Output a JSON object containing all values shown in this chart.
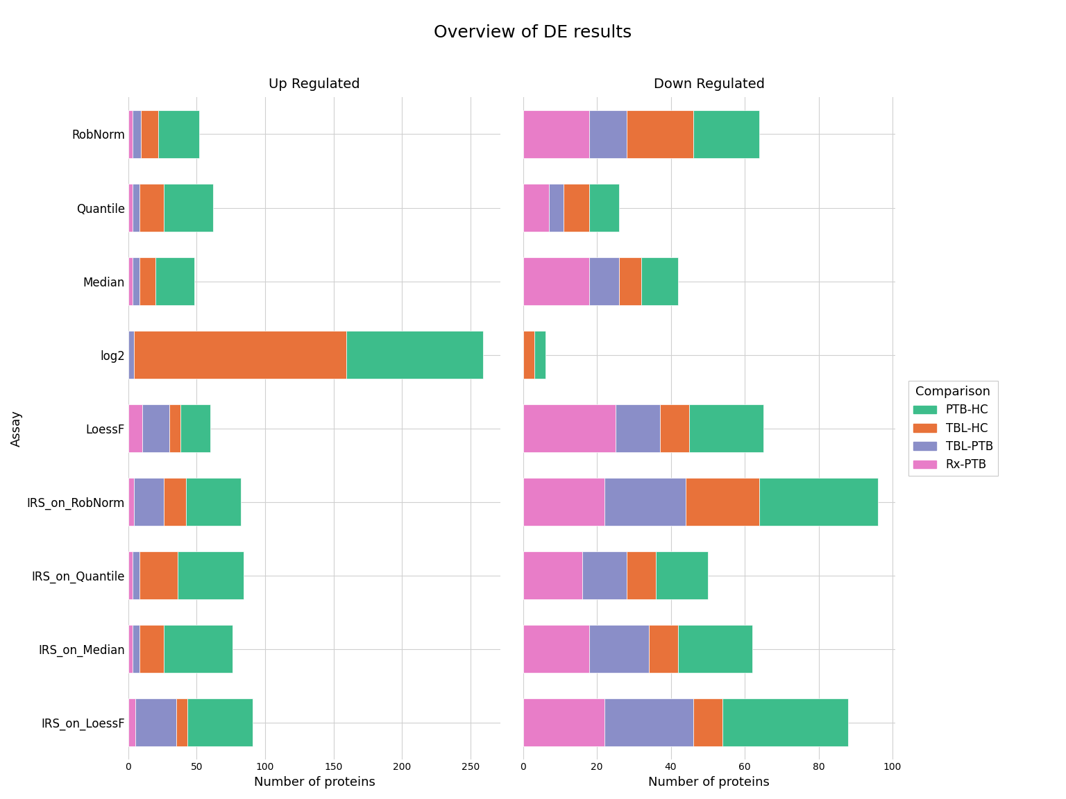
{
  "title": "Overview of DE results",
  "facets": [
    "Up Regulated",
    "Down Regulated"
  ],
  "assays": [
    "IRS_on_LoessF",
    "IRS_on_Median",
    "IRS_on_Quantile",
    "IRS_on_RobNorm",
    "LoessF",
    "log2",
    "Median",
    "Quantile",
    "RobNorm"
  ],
  "assays_display": [
    "RobNorm",
    "Quantile",
    "Median",
    "log2",
    "LoessF",
    "IRS_on_RobNorm",
    "IRS_on_Quantile",
    "IRS_on_Median",
    "IRS_on_LoessF"
  ],
  "comparisons": [
    "PTB-HC",
    "TBL-HC",
    "TBL-PTB",
    "Rx-PTB"
  ],
  "colors": {
    "PTB-HC": "#3DBD8B",
    "TBL-HC": "#E8723A",
    "TBL-PTB": "#8A8EC8",
    "Rx-PTB": "#E87DC8"
  },
  "stack_order": [
    "Rx-PTB",
    "TBL-PTB",
    "TBL-HC",
    "PTB-HC"
  ],
  "up_regulated": {
    "RobNorm": {
      "Rx-PTB": 3,
      "TBL-PTB": 6,
      "TBL-HC": 13,
      "PTB-HC": 30
    },
    "Quantile": {
      "Rx-PTB": 3,
      "TBL-PTB": 5,
      "TBL-HC": 18,
      "PTB-HC": 36
    },
    "Median": {
      "Rx-PTB": 3,
      "TBL-PTB": 5,
      "TBL-HC": 12,
      "PTB-HC": 28
    },
    "log2": {
      "Rx-PTB": 0,
      "TBL-PTB": 4,
      "TBL-HC": 155,
      "PTB-HC": 100
    },
    "LoessF": {
      "Rx-PTB": 10,
      "TBL-PTB": 20,
      "TBL-HC": 8,
      "PTB-HC": 22
    },
    "IRS_on_RobNorm": {
      "Rx-PTB": 4,
      "TBL-PTB": 22,
      "TBL-HC": 16,
      "PTB-HC": 40
    },
    "IRS_on_Quantile": {
      "Rx-PTB": 3,
      "TBL-PTB": 5,
      "TBL-HC": 28,
      "PTB-HC": 48
    },
    "IRS_on_Median": {
      "Rx-PTB": 3,
      "TBL-PTB": 5,
      "TBL-HC": 18,
      "PTB-HC": 50
    },
    "IRS_on_LoessF": {
      "Rx-PTB": 5,
      "TBL-PTB": 30,
      "TBL-HC": 8,
      "PTB-HC": 48
    }
  },
  "down_regulated": {
    "RobNorm": {
      "Rx-PTB": 18,
      "TBL-PTB": 10,
      "TBL-HC": 18,
      "PTB-HC": 18
    },
    "Quantile": {
      "Rx-PTB": 7,
      "TBL-PTB": 4,
      "TBL-HC": 7,
      "PTB-HC": 8
    },
    "Median": {
      "Rx-PTB": 18,
      "TBL-PTB": 8,
      "TBL-HC": 6,
      "PTB-HC": 10
    },
    "log2": {
      "Rx-PTB": 0,
      "TBL-PTB": 0,
      "TBL-HC": 3,
      "PTB-HC": 3
    },
    "LoessF": {
      "Rx-PTB": 25,
      "TBL-PTB": 12,
      "TBL-HC": 8,
      "PTB-HC": 20
    },
    "IRS_on_RobNorm": {
      "Rx-PTB": 22,
      "TBL-PTB": 22,
      "TBL-HC": 20,
      "PTB-HC": 32
    },
    "IRS_on_Quantile": {
      "Rx-PTB": 16,
      "TBL-PTB": 12,
      "TBL-HC": 8,
      "PTB-HC": 14
    },
    "IRS_on_Median": {
      "Rx-PTB": 18,
      "TBL-PTB": 16,
      "TBL-HC": 8,
      "PTB-HC": 20
    },
    "IRS_on_LoessF": {
      "Rx-PTB": 22,
      "TBL-PTB": 24,
      "TBL-HC": 8,
      "PTB-HC": 34
    }
  },
  "xlabel": "Number of proteins",
  "ylabel": "Assay",
  "legend_title": "Comparison",
  "background_color": "#ffffff",
  "grid_color": "#d0d0d0"
}
